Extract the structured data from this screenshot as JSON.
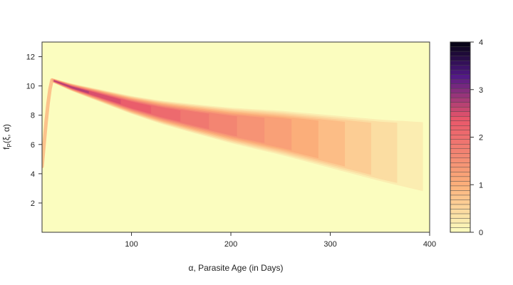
{
  "chart_data": {
    "type": "heatmap",
    "title": "",
    "xlabel": "α, Parasite Age (in Days)",
    "ylabel": "f_P(ξ, α)",
    "ylabel_main": "f",
    "ylabel_sub": "P",
    "ylabel_args": "(ξ, α)",
    "xlim": [
      10,
      400
    ],
    "ylim": [
      0,
      13
    ],
    "x_ticks": [
      100,
      200,
      300,
      400
    ],
    "y_ticks": [
      2,
      4,
      6,
      8,
      10,
      12
    ],
    "colorbar": {
      "range": [
        0,
        4
      ],
      "ticks": [
        0,
        1,
        2,
        3,
        4
      ],
      "levels": 41,
      "colors": {
        "low": "#fbfdbf",
        "mid_low": "#fcb07a",
        "mid": "#e8556a",
        "mid_high": "#521987",
        "high": "#030210"
      }
    },
    "features": {
      "ridge": {
        "description_hidden": "",
        "x": [
          20,
          40,
          60,
          80,
          100,
          130,
          160,
          200,
          250,
          300,
          350,
          400
        ],
        "y": [
          10.4,
          9.9,
          9.5,
          9.1,
          8.7,
          8.2,
          7.8,
          7.3,
          6.8,
          6.2,
          5.6,
          5.1
        ],
        "peak_value": 2.9
      },
      "early_branch": {
        "x": [
          10,
          12,
          14,
          16,
          18,
          20
        ],
        "y": [
          4.5,
          6.0,
          7.5,
          8.8,
          9.8,
          10.4
        ]
      }
    }
  }
}
